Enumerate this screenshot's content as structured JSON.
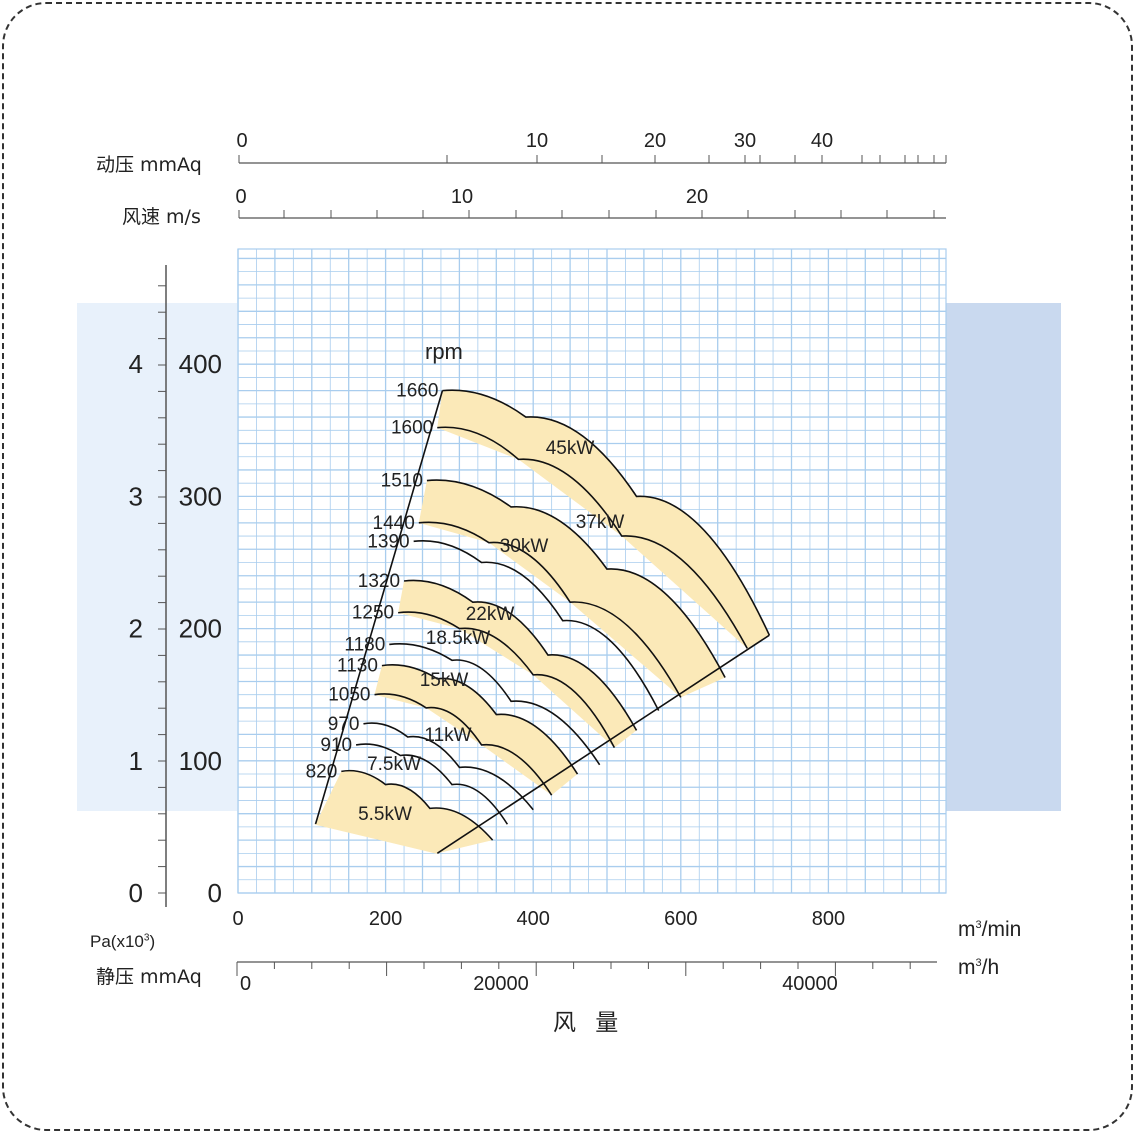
{
  "chart_data": {
    "type": "fan-performance-curve",
    "xlabel": "风 量",
    "x_unit_min": "m³/min",
    "x_unit_h": "m³/h",
    "x_ticks_min": [
      0,
      200,
      400,
      600,
      800
    ],
    "x_ticks_h": [
      0,
      20000,
      40000
    ],
    "xlim": [
      0,
      960
    ],
    "y_unit_pa": "Pa(x10³)",
    "y_unit_mmaq": "静压 mmAq",
    "y_ticks_pa": [
      0,
      1,
      2,
      3,
      4
    ],
    "y_ticks_mmaq": [
      0,
      100,
      200,
      300,
      400
    ],
    "ylim": [
      0,
      480
    ],
    "top_scale_dyn": {
      "label": "动压  mmAq",
      "ticks": [
        0,
        10,
        20,
        30,
        40
      ]
    },
    "top_scale_vel": {
      "label": "风速  m/s",
      "ticks": [
        0,
        10,
        20
      ]
    },
    "rpm_label": "rpm",
    "rpm_curves": [
      {
        "rpm": "1660",
        "q": [
          277,
          390,
          540,
          720
        ],
        "p": [
          380,
          360,
          300,
          195
        ]
      },
      {
        "rpm": "1600",
        "q": [
          270,
          380,
          520,
          690
        ],
        "p": [
          352,
          328,
          270,
          185
        ]
      },
      {
        "rpm": "1510",
        "q": [
          256,
          370,
          500,
          660
        ],
        "p": [
          312,
          292,
          245,
          163
        ]
      },
      {
        "rpm": "1440",
        "q": [
          245,
          340,
          450,
          600
        ],
        "p": [
          280,
          265,
          220,
          148
        ]
      },
      {
        "rpm": "1390",
        "q": [
          238,
          330,
          440,
          570
        ],
        "p": [
          266,
          250,
          206,
          138
        ]
      },
      {
        "rpm": "1320",
        "q": [
          225,
          318,
          420,
          540
        ],
        "p": [
          236,
          220,
          180,
          123
        ]
      },
      {
        "rpm": "1250",
        "q": [
          217,
          300,
          400,
          510
        ],
        "p": [
          212,
          200,
          165,
          110
        ]
      },
      {
        "rpm": "1180",
        "q": [
          205,
          290,
          370,
          490
        ],
        "p": [
          188,
          176,
          145,
          97
        ]
      },
      {
        "rpm": "1130",
        "q": [
          195,
          270,
          350,
          460
        ],
        "p": [
          172,
          162,
          135,
          90
        ]
      },
      {
        "rpm": "1050",
        "q": [
          185,
          255,
          330,
          425
        ],
        "p": [
          150,
          140,
          112,
          74
        ]
      },
      {
        "rpm": "970",
        "q": [
          170,
          230,
          300,
          400
        ],
        "p": [
          128,
          118,
          95,
          63
        ]
      },
      {
        "rpm": "910",
        "q": [
          160,
          220,
          290,
          365
        ],
        "p": [
          112,
          104,
          82,
          52
        ]
      },
      {
        "rpm": "820",
        "q": [
          140,
          200,
          260,
          345
        ],
        "p": [
          92,
          82,
          64,
          40
        ]
      }
    ],
    "power_labels": [
      "45kW",
      "37kW",
      "30kW",
      "22kW",
      "18.5kW",
      "15kW",
      "11kW",
      "7.5kW",
      "5.5kW"
    ]
  }
}
